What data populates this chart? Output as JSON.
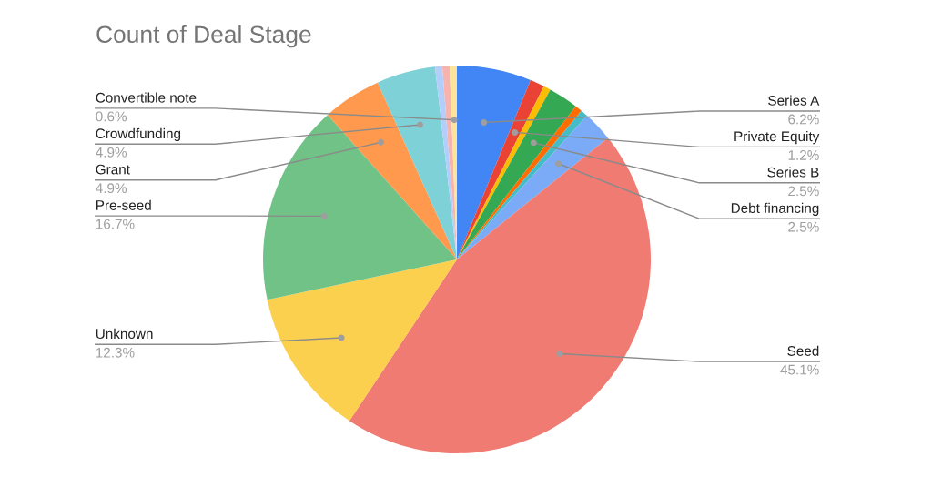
{
  "chart_data": {
    "type": "pie",
    "title": "Count of Deal Stage",
    "categories": [
      "Series A",
      "Private Equity",
      null,
      "Series B",
      null,
      null,
      "Debt financing",
      "Seed",
      "Unknown",
      "Pre-seed",
      "Grant",
      "Crowdfunding",
      null,
      null,
      "Convertible note"
    ],
    "values": [
      6.2,
      1.2,
      0.6,
      2.5,
      0.6,
      0.6,
      2.5,
      45.1,
      12.3,
      16.7,
      4.9,
      4.9,
      0.6,
      0.6,
      0.6
    ],
    "value_labels": [
      "6.2%",
      "1.2%",
      null,
      "2.5%",
      null,
      null,
      "2.5%",
      "45.1%",
      "12.3%",
      "16.7%",
      "4.9%",
      "4.9%",
      null,
      null,
      "0.6%"
    ],
    "colors": [
      "#4285f4",
      "#ea4335",
      "#fbbc04",
      "#34a853",
      "#ff6d01",
      "#46bdc6",
      "#7baaf7",
      "#f07b72",
      "#fcd04f",
      "#71c287",
      "#ff994d",
      "#7ed1d7",
      "#b3cefb",
      "#f7b4ae",
      "#fde49b"
    ]
  }
}
